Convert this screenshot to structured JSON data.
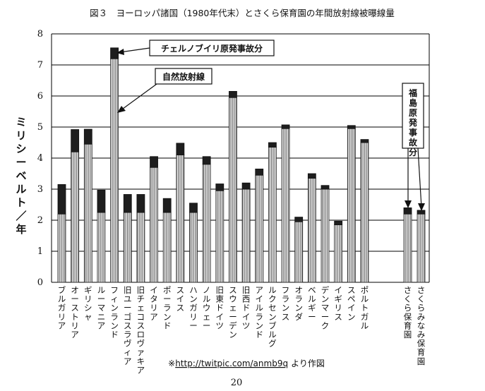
{
  "page": {
    "title": "図３　ヨーロッパ諸国（1980年代末）とさくら保育園の年間放射線被曝線量",
    "source_prefix": "※",
    "source_link": "http://twitpic.com/anmb9q",
    "source_suffix": "より作図",
    "page_number": "20"
  },
  "annotations": {
    "chernobyl": "チェルノブイリ原発事故分",
    "natural": "自然放射線",
    "fukushima": "福島原発事故分"
  },
  "colors": {
    "natural_fill": "#8a8a8a",
    "accident_fill": "#1e1e1e",
    "grid": "#000000"
  },
  "chart_data": {
    "type": "bar",
    "stacked": true,
    "title": "図３　ヨーロッパ諸国（1980年代末）とさくら保育園の年間放射線被曝線量",
    "ylabel": "ミリシーベルト／年",
    "xlabel": "",
    "ylim": [
      0,
      8
    ],
    "yticks": [
      "0",
      "1",
      "2",
      "3",
      "4",
      "5",
      "6",
      "7",
      "8"
    ],
    "grid": true,
    "categories": [
      "ブルガリア",
      "オーストリア",
      "ギリシャ",
      "ルーマニア",
      "フィンランド",
      "旧ユーゴスラヴィア",
      "旧チェコスロヴァキア",
      "イタリア",
      "ポーランド",
      "スイス",
      "ハンガリー",
      "ノルウェー",
      "旧東ドイツ",
      "スウェーデン",
      "旧西ドイツ",
      "アイルランド",
      "ルクセンブルグ",
      "フランス",
      "オランダ",
      "ベルギー",
      "デンマーク",
      "イギリス",
      "スペイン",
      "ポルトガル",
      "さくら保育園",
      "さくらみなみ保育園"
    ],
    "series": [
      {
        "name": "自然放射線",
        "values": [
          2.2,
          4.2,
          4.45,
          2.25,
          7.2,
          2.25,
          2.25,
          3.7,
          2.25,
          4.1,
          2.25,
          3.8,
          2.95,
          5.95,
          3.0,
          3.45,
          4.35,
          4.95,
          1.95,
          3.35,
          3.0,
          1.85,
          4.95,
          4.5,
          2.2,
          2.2
        ],
        "color": "#8a8a8a"
      },
      {
        "name": "チェルノブイリ原発事故分",
        "values": [
          0.95,
          0.72,
          0.48,
          0.72,
          0.35,
          0.58,
          0.58,
          0.35,
          0.45,
          0.38,
          0.3,
          0.25,
          0.22,
          0.2,
          0.2,
          0.2,
          0.15,
          0.12,
          0.15,
          0.15,
          0.12,
          0.12,
          0.1,
          0.1,
          0.2,
          0.12
        ],
        "color": "#1e1e1e"
      }
    ]
  }
}
